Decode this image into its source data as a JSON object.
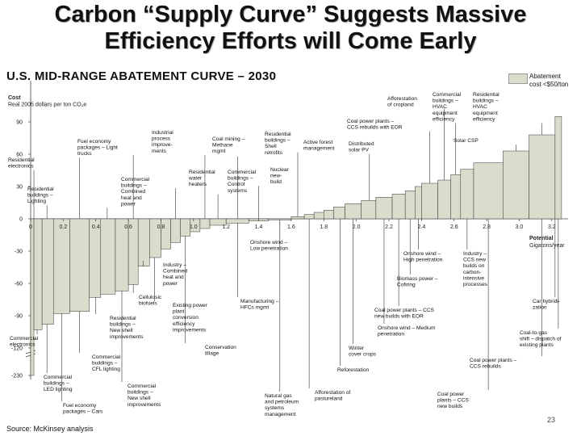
{
  "chart_data": {
    "type": "bar",
    "title_lines": [
      "Carbon “Supply Curve” Suggests Massive",
      "Efficiency Efforts will Come Early"
    ],
    "subtitle": "U.S. MID-RANGE ABATEMENT CURVE – 2030",
    "ylabel_lines": [
      "Cost",
      "Real 2005 dollars per ton CO₂e"
    ],
    "xlabel_lines": [
      "Potential",
      "Gigatons/year"
    ],
    "legend_lines": [
      "Abatement",
      "cost <$50/ton"
    ],
    "source": "Source: McKinsey analysis",
    "page_number": "23",
    "xlim": [
      0,
      3.3
    ],
    "ylim": [
      -230,
      100
    ],
    "y_ticks": [
      90,
      60,
      30,
      0,
      -30,
      -60,
      -90,
      -120,
      -230
    ],
    "x_ticks": [
      "0",
      "0.2",
      "0.4",
      "0.6",
      "0.8",
      "1.0",
      "1.2",
      "1.4",
      "1.6",
      "1.8",
      "2.0",
      "2.2",
      "2.4",
      "2.6",
      "2.8",
      "3.0",
      "3.2"
    ],
    "x_tick_values": [
      0,
      0.2,
      0.4,
      0.6,
      0.8,
      1.0,
      1.2,
      1.4,
      1.6,
      1.8,
      2.0,
      2.2,
      2.4,
      2.6,
      2.8,
      3.0,
      3.2
    ],
    "grid": false,
    "bars": [
      {
        "x0": 0.0,
        "x1": 0.02,
        "y": -230
      },
      {
        "x0": 0.02,
        "x1": 0.07,
        "y": -103
      },
      {
        "x0": 0.07,
        "x1": 0.14,
        "y": -98
      },
      {
        "x0": 0.14,
        "x1": 0.24,
        "y": -88
      },
      {
        "x0": 0.24,
        "x1": 0.36,
        "y": -86
      },
      {
        "x0": 0.36,
        "x1": 0.43,
        "y": -73
      },
      {
        "x0": 0.43,
        "x1": 0.52,
        "y": -70
      },
      {
        "x0": 0.52,
        "x1": 0.6,
        "y": -67
      },
      {
        "x0": 0.6,
        "x1": 0.66,
        "y": -61
      },
      {
        "x0": 0.66,
        "x1": 0.73,
        "y": -44
      },
      {
        "x0": 0.73,
        "x1": 0.8,
        "y": -36
      },
      {
        "x0": 0.8,
        "x1": 0.86,
        "y": -28
      },
      {
        "x0": 0.86,
        "x1": 0.92,
        "y": -22
      },
      {
        "x0": 0.92,
        "x1": 0.98,
        "y": -16
      },
      {
        "x0": 0.98,
        "x1": 1.04,
        "y": -12
      },
      {
        "x0": 1.04,
        "x1": 1.1,
        "y": -9
      },
      {
        "x0": 1.1,
        "x1": 1.2,
        "y": -6
      },
      {
        "x0": 1.2,
        "x1": 1.34,
        "y": -4
      },
      {
        "x0": 1.34,
        "x1": 1.46,
        "y": -2
      },
      {
        "x0": 1.46,
        "x1": 1.6,
        "y": -1
      },
      {
        "x0": 1.6,
        "x1": 1.68,
        "y": 2
      },
      {
        "x0": 1.68,
        "x1": 1.74,
        "y": 4
      },
      {
        "x0": 1.74,
        "x1": 1.8,
        "y": 6
      },
      {
        "x0": 1.8,
        "x1": 1.86,
        "y": 8
      },
      {
        "x0": 1.86,
        "x1": 1.93,
        "y": 11
      },
      {
        "x0": 1.93,
        "x1": 2.03,
        "y": 14
      },
      {
        "x0": 2.03,
        "x1": 2.12,
        "y": 17
      },
      {
        "x0": 2.12,
        "x1": 2.22,
        "y": 20
      },
      {
        "x0": 2.22,
        "x1": 2.3,
        "y": 23
      },
      {
        "x0": 2.3,
        "x1": 2.36,
        "y": 26
      },
      {
        "x0": 2.36,
        "x1": 2.4,
        "y": 30
      },
      {
        "x0": 2.4,
        "x1": 2.5,
        "y": 33
      },
      {
        "x0": 2.5,
        "x1": 2.58,
        "y": 36
      },
      {
        "x0": 2.58,
        "x1": 2.64,
        "y": 41
      },
      {
        "x0": 2.64,
        "x1": 2.72,
        "y": 46
      },
      {
        "x0": 2.72,
        "x1": 2.9,
        "y": 52
      },
      {
        "x0": 2.9,
        "x1": 3.06,
        "y": 63
      },
      {
        "x0": 3.06,
        "x1": 3.22,
        "y": 78
      },
      {
        "x0": 3.22,
        "x1": 3.26,
        "y": 95
      }
    ],
    "annotations": [
      {
        "lines": [
          "Residential",
          "electronics"
        ],
        "x": 0.02,
        "y": -230
      },
      {
        "lines": [
          "Commercial",
          "electronics"
        ],
        "x": 0.04,
        "y": -103
      },
      {
        "lines": [
          "Residential",
          "buildings –",
          "Lighting"
        ],
        "x": 0.1,
        "y": -98
      },
      {
        "lines": [
          "Commercial",
          "buildings –",
          "LED lighting"
        ],
        "x": 0.1,
        "y": -98
      },
      {
        "lines": [
          "Fuel economy",
          "packages – Cars"
        ],
        "x": 0.19,
        "y": -88
      },
      {
        "lines": [
          "Commercial",
          "buildings –",
          "CFL lighting"
        ],
        "x": 0.3,
        "y": -86
      },
      {
        "lines": [
          "Fuel economy",
          "packages – Light",
          "trucks"
        ],
        "x": 0.3,
        "y": -86
      },
      {
        "lines": [
          "Residential",
          "buildings –",
          "New shell",
          "improvements"
        ],
        "x": 0.4,
        "y": -73
      },
      {
        "lines": [
          "Commercial",
          "buildings –",
          "Combined",
          "heat and",
          "power"
        ],
        "x": 0.47,
        "y": -70
      },
      {
        "lines": [
          "Commercial",
          "buildings –",
          "New shell",
          "improvements"
        ],
        "x": 0.56,
        "y": -67
      },
      {
        "lines": [
          "Cellulosic",
          "biofuels"
        ],
        "x": 0.63,
        "y": -61
      },
      {
        "lines": [
          "Industrial",
          "process",
          "improve-",
          "ments"
        ],
        "x": 0.63,
        "y": -61
      },
      {
        "lines": [
          "Industry –",
          "Combined",
          "heat and",
          "power"
        ],
        "x": 0.69,
        "y": -44
      },
      {
        "lines": [
          "Existing power",
          "plant",
          "conversion",
          "efficiency",
          "improvements"
        ],
        "x": 0.76,
        "y": -36
      },
      {
        "lines": [
          "Residential",
          "water",
          "heaters"
        ],
        "x": 0.89,
        "y": -22
      },
      {
        "lines": [
          "Conservation",
          "tillage"
        ],
        "x": 0.95,
        "y": -16
      },
      {
        "lines": [
          "Coal mining –",
          "Methane",
          "mgmt"
        ],
        "x": 1.07,
        "y": -9
      },
      {
        "lines": [
          "Commercial",
          "buildings –",
          "Control",
          "systems"
        ],
        "x": 1.15,
        "y": -6
      },
      {
        "lines": [
          "Residential",
          "buildings –",
          "Shell",
          "retrofits"
        ],
        "x": 1.27,
        "y": -4
      },
      {
        "lines": [
          "Manufacturing –",
          "HFCs mgmt"
        ],
        "x": 1.27,
        "y": -4
      },
      {
        "lines": [
          "Nuclear",
          "new-",
          "build"
        ],
        "x": 1.4,
        "y": -2
      },
      {
        "lines": [
          "Onshore wind –",
          "Low penetration"
        ],
        "x": 1.53,
        "y": -1
      },
      {
        "lines": [
          "Natural gas",
          "and petroleum",
          "systems",
          "management"
        ],
        "x": 1.53,
        "y": -1
      },
      {
        "lines": [
          "Active forest",
          "management"
        ],
        "x": 1.64,
        "y": 2
      },
      {
        "lines": [
          "Afforestation of",
          "pastureland"
        ],
        "x": 1.71,
        "y": 4
      },
      {
        "lines": [
          "Reforestation"
        ],
        "x": 1.9,
        "y": 11
      },
      {
        "lines": [
          "Winter",
          "cover crops"
        ],
        "x": 1.98,
        "y": 14
      },
      {
        "lines": [
          "Distributed",
          "solar PV"
        ],
        "x": 2.08,
        "y": 17
      },
      {
        "lines": [
          "Onshore wind – Medium",
          "penetration"
        ],
        "x": 2.17,
        "y": 20
      },
      {
        "lines": [
          "Coal power plants – CCS",
          "new builds with EOR"
        ],
        "x": 2.26,
        "y": 23
      },
      {
        "lines": [
          "Biomass power –",
          "Cofiring"
        ],
        "x": 2.33,
        "y": 26
      },
      {
        "lines": [
          "Onshore wind –",
          "High penetration"
        ],
        "x": 2.38,
        "y": 30
      },
      {
        "lines": [
          "Coal power plants –",
          "CCS rebuilds with EOR"
        ],
        "x": 2.45,
        "y": 33
      },
      {
        "lines": [
          "Afforestation",
          "of cropland"
        ],
        "x": 2.54,
        "y": 36
      },
      {
        "lines": [
          "Commercial",
          "buildings –",
          "HVAC",
          "equipment",
          "efficiency"
        ],
        "x": 2.61,
        "y": 41
      },
      {
        "lines": [
          "Industry –",
          "CCS new",
          "builds on",
          "carbon-",
          "intensive",
          "processes"
        ],
        "x": 2.68,
        "y": 46
      },
      {
        "lines": [
          "Coal power",
          "plants – CCS",
          "new builds"
        ],
        "x": 2.81,
        "y": 52
      },
      {
        "lines": [
          "Solar CSP"
        ],
        "x": 2.98,
        "y": 63
      },
      {
        "lines": [
          "Residential",
          "buildings –",
          "HVAC",
          "equipment",
          "efficiency"
        ],
        "x": 3.14,
        "y": 78
      },
      {
        "lines": [
          "Coal power plants –",
          "CCS rebuilds"
        ],
        "x": 3.14,
        "y": 78
      },
      {
        "lines": [
          "Car hybridi-",
          "zation"
        ],
        "x": 3.22,
        "y": 95
      },
      {
        "lines": [
          "Coal-to-gas",
          "shift – dispatch of",
          "existing plants"
        ],
        "x": 3.24,
        "y": 95
      }
    ]
  }
}
